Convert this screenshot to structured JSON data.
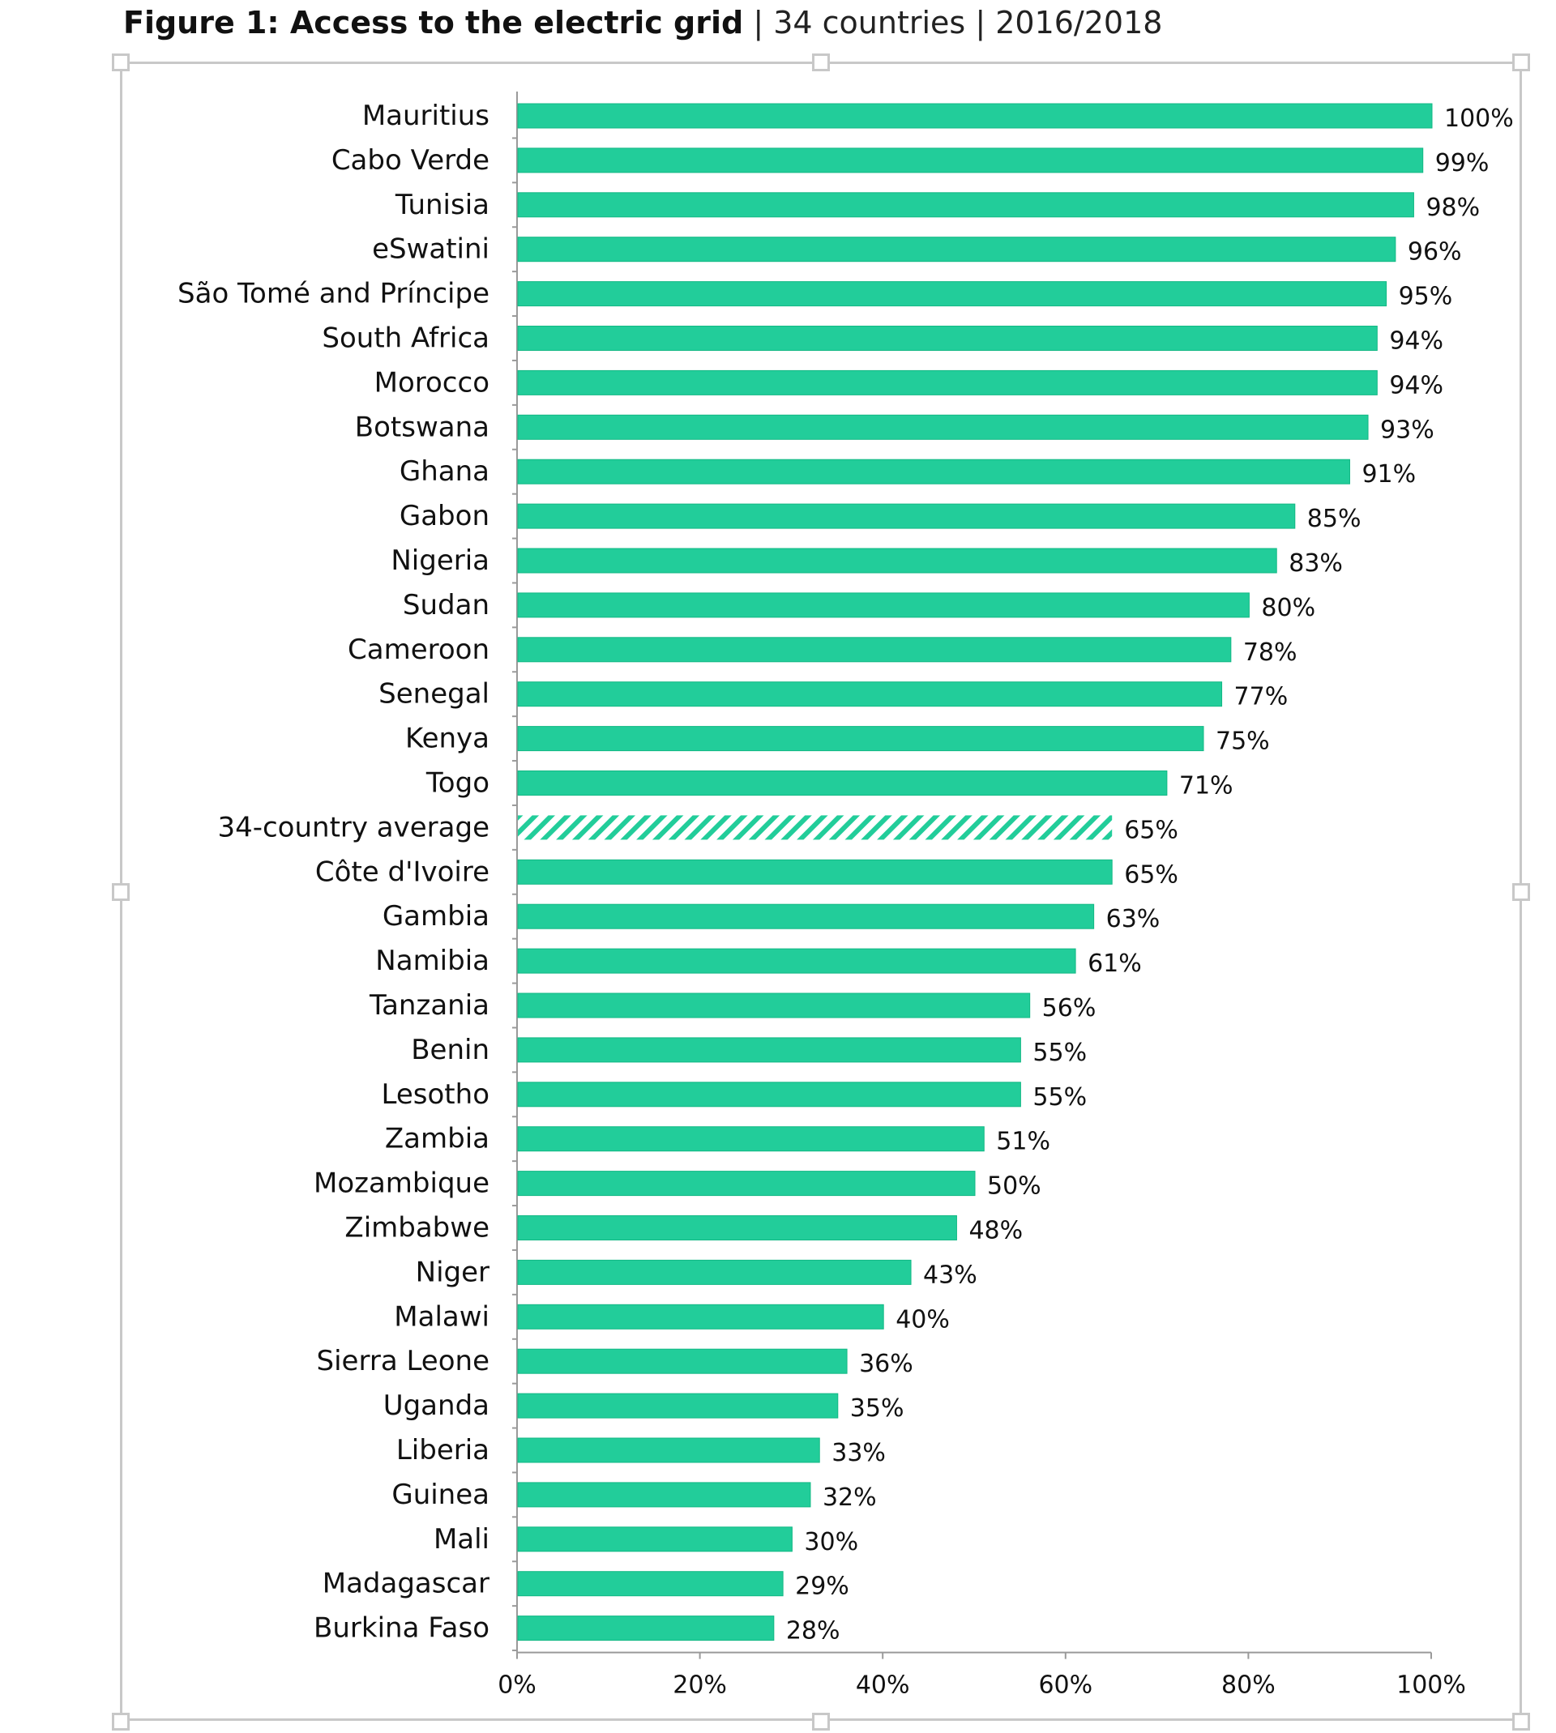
{
  "title": {
    "bold": "Figure 1: Access to the electric grid",
    "sep1": "|",
    "subtitle": "34 countries",
    "sep2": "|",
    "years": "2016/2018"
  },
  "colors": {
    "bar": "#22cd9a",
    "bar_edge": "#12b884",
    "hatch": "#22cd9a",
    "axis": "#9a9a9a"
  },
  "chart_data": {
    "type": "bar",
    "orientation": "horizontal",
    "title": "Figure 1: Access to the electric grid | 34 countries | 2016/2018",
    "xlabel": "",
    "ylabel": "",
    "xlim": [
      0,
      100
    ],
    "x_ticks": [
      "0%",
      "20%",
      "40%",
      "60%",
      "80%",
      "100%"
    ],
    "x_tick_values": [
      0,
      20,
      40,
      60,
      80,
      100
    ],
    "grid": false,
    "legend": "none",
    "value_suffix": "%",
    "categories": [
      "Mauritius",
      "Cabo Verde",
      "Tunisia",
      "eSwatini",
      "São Tomé and Príncipe",
      "South Africa",
      "Morocco",
      "Botswana",
      "Ghana",
      "Gabon",
      "Nigeria",
      "Sudan",
      "Cameroon",
      "Senegal",
      "Kenya",
      "Togo",
      "34-country average",
      "Côte d'Ivoire",
      "Gambia",
      "Namibia",
      "Tanzania",
      "Benin",
      "Lesotho",
      "Zambia",
      "Mozambique",
      "Zimbabwe",
      "Niger",
      "Malawi",
      "Sierra Leone",
      "Uganda",
      "Liberia",
      "Guinea",
      "Mali",
      "Madagascar",
      "Burkina Faso"
    ],
    "values": [
      100,
      99,
      98,
      96,
      95,
      94,
      94,
      93,
      91,
      85,
      83,
      80,
      78,
      77,
      75,
      71,
      65,
      65,
      63,
      61,
      56,
      55,
      55,
      51,
      50,
      48,
      43,
      40,
      36,
      35,
      33,
      32,
      30,
      29,
      28
    ],
    "value_labels": [
      "100%",
      "99%",
      "98%",
      "96%",
      "95%",
      "94%",
      "94%",
      "93%",
      "91%",
      "85%",
      "83%",
      "80%",
      "78%",
      "77%",
      "75%",
      "71%",
      "65%",
      "65%",
      "63%",
      "61%",
      "56%",
      "55%",
      "55%",
      "51%",
      "50%",
      "48%",
      "43%",
      "40%",
      "36%",
      "35%",
      "33%",
      "32%",
      "30%",
      "29%",
      "28%"
    ],
    "highlight": {
      "category": "34-country average",
      "style": "hatched"
    }
  }
}
